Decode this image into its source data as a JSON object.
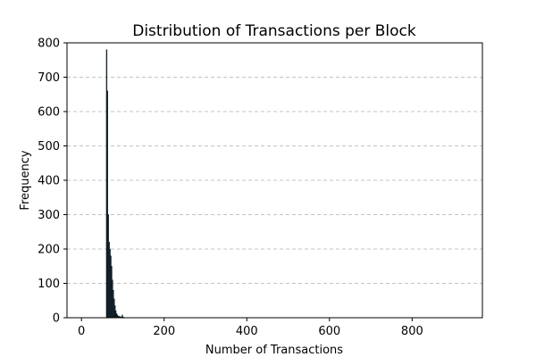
{
  "chart_data": {
    "type": "bar",
    "title": "Distribution of Transactions per Block",
    "xlabel": "Number of Transactions",
    "ylabel": "Frequency",
    "xlim": [
      -35,
      970
    ],
    "ylim": [
      0,
      800
    ],
    "x_ticks": [
      0,
      200,
      400,
      600,
      800
    ],
    "y_ticks": [
      0,
      100,
      200,
      300,
      400,
      500,
      600,
      700,
      800
    ],
    "grid": "y-dashed",
    "bin_width": 2,
    "bins": [
      {
        "x": 61,
        "value": 780
      },
      {
        "x": 63,
        "value": 660
      },
      {
        "x": 65,
        "value": 300
      },
      {
        "x": 67,
        "value": 220
      },
      {
        "x": 69,
        "value": 200
      },
      {
        "x": 71,
        "value": 180
      },
      {
        "x": 73,
        "value": 150
      },
      {
        "x": 75,
        "value": 110
      },
      {
        "x": 77,
        "value": 80
      },
      {
        "x": 79,
        "value": 55
      },
      {
        "x": 81,
        "value": 35
      },
      {
        "x": 83,
        "value": 20
      },
      {
        "x": 85,
        "value": 12
      },
      {
        "x": 87,
        "value": 8
      },
      {
        "x": 89,
        "value": 5
      },
      {
        "x": 91,
        "value": 4
      },
      {
        "x": 93,
        "value": 3
      },
      {
        "x": 95,
        "value": 3
      },
      {
        "x": 97,
        "value": 2
      },
      {
        "x": 99,
        "value": 8
      },
      {
        "x": 101,
        "value": 2
      },
      {
        "x": 103,
        "value": 1
      }
    ],
    "colors": {
      "bar_fill": "#1f3b4d",
      "bar_edge": "#000000",
      "grid": "#b0b0b0"
    }
  }
}
